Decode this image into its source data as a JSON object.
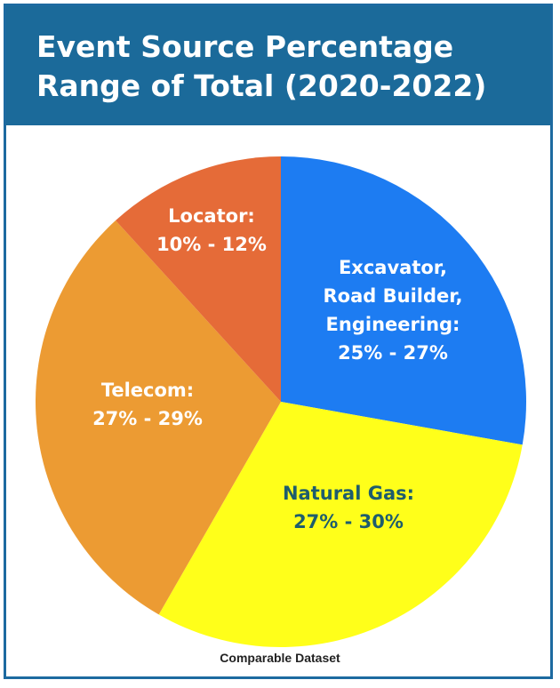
{
  "header": {
    "title_line1": "Event Source Percentage",
    "title_line2": "Range of Total (2020-2022)"
  },
  "footer": {
    "caption": "Comparable Dataset"
  },
  "chart_data": {
    "type": "pie",
    "title": "Event Source Percentage Range of Total (2020-2022)",
    "slices": [
      {
        "label_lines": [
          "Excavator,",
          "Road Builder,",
          "Engineering:",
          "25% - 27%"
        ],
        "value": 26,
        "color": "#1d7cf2",
        "text_color": "#ffffff"
      },
      {
        "label_lines": [
          "Natural Gas:",
          "27% - 30%"
        ],
        "value": 28.5,
        "color": "#ffff1a",
        "text_color": "#1e5d6d"
      },
      {
        "label_lines": [
          "Telecom:",
          "27% - 29%"
        ],
        "value": 28,
        "color": "#ec9b33",
        "text_color": "#ffffff"
      },
      {
        "label_lines": [
          "Locator:",
          "10% - 12%"
        ],
        "value": 11,
        "color": "#e56b38",
        "text_color": "#ffffff"
      }
    ]
  }
}
